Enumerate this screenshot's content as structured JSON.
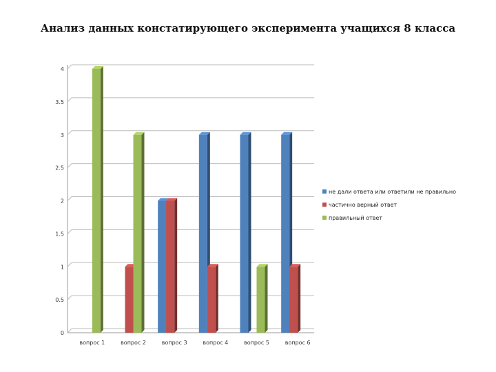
{
  "chart_data": {
    "type": "bar",
    "title": "Анализ данных констатирующего эксперимента учащихся 8 класса",
    "categories": [
      "вопрос 1",
      "вопрос 2",
      "вопрос 3",
      "вопрос 4",
      "вопрос 5",
      "вопрос 6"
    ],
    "series": [
      {
        "name": "не дали ответа или ответили не правильно",
        "values": [
          0,
          0,
          2,
          3,
          3,
          3
        ],
        "color": "#4F81BD"
      },
      {
        "name": "частично верный ответ",
        "values": [
          0,
          1,
          2,
          1,
          0,
          1
        ],
        "color": "#C0504D"
      },
      {
        "name": "правильный ответ",
        "values": [
          4,
          3,
          0,
          0,
          1,
          0
        ],
        "color": "#9BBB59"
      }
    ],
    "ylim": [
      0,
      4
    ],
    "yticks": [
      "0",
      "0.5",
      "1",
      "1.5",
      "2",
      "2.5",
      "3",
      "3.5",
      "4"
    ],
    "grid": true,
    "legend_position": "right",
    "style": "3d-clustered-column"
  }
}
